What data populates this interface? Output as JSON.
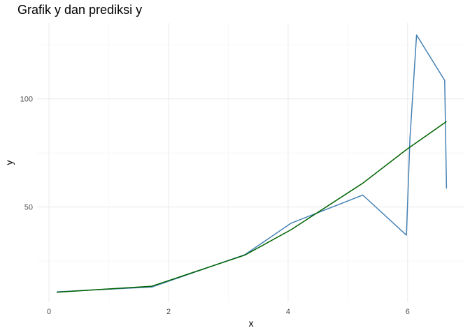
{
  "chart_data": {
    "type": "line",
    "title": "Grafik y dan prediksi y",
    "xlabel": "x",
    "ylabel": "y",
    "xlim": [
      -0.2,
      6.95
    ],
    "ylim": [
      6,
      135
    ],
    "x_ticks": [
      0,
      2,
      4,
      6
    ],
    "x_tick_labels": [
      "0",
      "2",
      "4",
      "6"
    ],
    "x_minor_ticks": [
      1,
      3,
      5
    ],
    "y_ticks": [
      50,
      100
    ],
    "y_tick_labels": [
      "50",
      "100"
    ],
    "y_minor_ticks": [
      25,
      75,
      125
    ],
    "grid": true,
    "legend": "none",
    "series": [
      {
        "color": "#4682B4",
        "points": [
          {
            "x": 0.13,
            "y": 10.8
          },
          {
            "x": 1.72,
            "y": 13.0
          },
          {
            "x": 3.28,
            "y": 28.0
          },
          {
            "x": 4.05,
            "y": 42.5
          },
          {
            "x": 5.25,
            "y": 55.5
          },
          {
            "x": 5.98,
            "y": 37.0
          },
          {
            "x": 6.04,
            "y": 82.0
          },
          {
            "x": 6.15,
            "y": 129.5
          },
          {
            "x": 6.62,
            "y": 108.5
          },
          {
            "x": 6.65,
            "y": 58.5
          }
        ]
      },
      {
        "color": "#006400",
        "points": [
          {
            "x": 0.13,
            "y": 10.6
          },
          {
            "x": 1.72,
            "y": 13.4
          },
          {
            "x": 3.28,
            "y": 27.8
          },
          {
            "x": 4.05,
            "y": 39.5
          },
          {
            "x": 5.25,
            "y": 61.0
          },
          {
            "x": 5.98,
            "y": 76.5
          },
          {
            "x": 6.65,
            "y": 89.5
          }
        ]
      }
    ]
  }
}
